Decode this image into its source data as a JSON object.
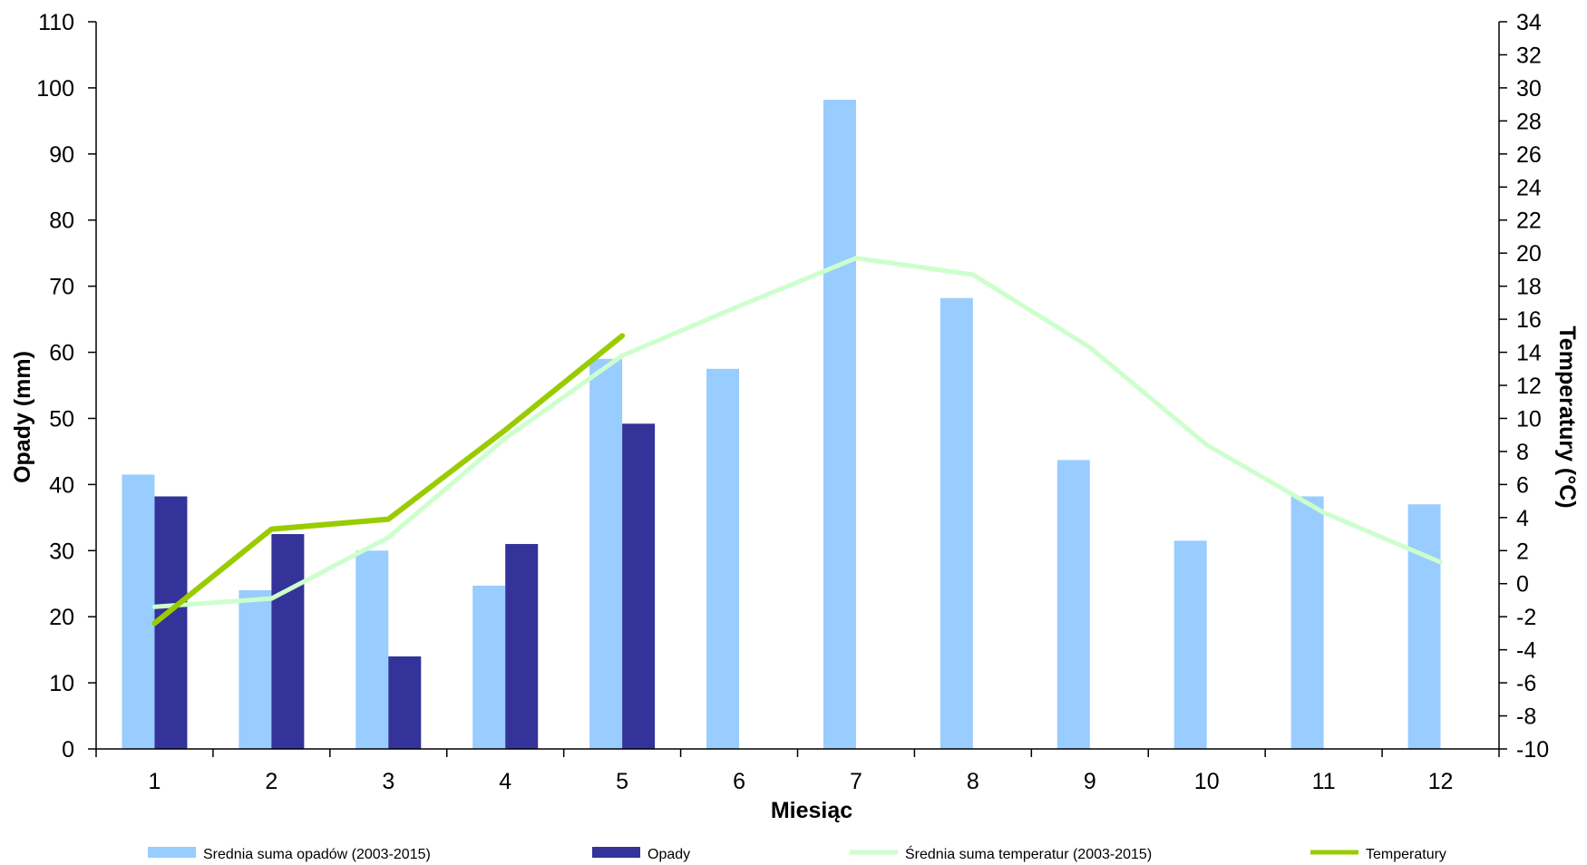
{
  "chart_data": {
    "type": "bar",
    "categories": [
      "1",
      "2",
      "3",
      "4",
      "5",
      "6",
      "7",
      "8",
      "9",
      "10",
      "11",
      "12"
    ],
    "xlabel": "Miesiąc",
    "ylabel": "Opady (mm)",
    "ylabel_right": "Temperatury (°C)",
    "ylim": [
      0,
      110
    ],
    "ylim_right": [
      -10,
      34
    ],
    "yticks": [
      0,
      10,
      20,
      30,
      40,
      50,
      60,
      70,
      80,
      90,
      100,
      110
    ],
    "yticks_right": [
      -10,
      -8,
      -6,
      -4,
      -2,
      0,
      2,
      4,
      6,
      8,
      10,
      12,
      14,
      16,
      18,
      20,
      22,
      24,
      26,
      28,
      30,
      32,
      34
    ],
    "grid": false,
    "legend_position": "bottom",
    "series": [
      {
        "name": "Srednia suma opadów (2003-2015)",
        "kind": "bar",
        "axis": "left",
        "color": "#99ccff",
        "values": [
          41.5,
          24,
          30,
          24.7,
          59,
          57.5,
          98.2,
          68.2,
          43.7,
          31.5,
          38.2,
          37
        ]
      },
      {
        "name": "Opady",
        "kind": "bar",
        "axis": "left",
        "color": "#333399",
        "values": [
          38.2,
          32.5,
          14,
          31,
          49.2,
          null,
          null,
          null,
          null,
          null,
          null,
          null
        ]
      },
      {
        "name": "Średnia suma temperatur (2003-2015)",
        "kind": "line",
        "axis": "right",
        "color": "#ccffcc",
        "values": [
          -1.4,
          -0.9,
          2.8,
          8.8,
          13.8,
          16.8,
          19.7,
          18.7,
          14.3,
          8.4,
          4.3,
          1.3
        ]
      },
      {
        "name": "Temperatury",
        "kind": "line",
        "axis": "right",
        "color": "#99cc00",
        "values": [
          -2.4,
          3.3,
          3.9,
          9.3,
          15.0,
          null,
          null,
          null,
          null,
          null,
          null,
          null
        ]
      }
    ]
  }
}
